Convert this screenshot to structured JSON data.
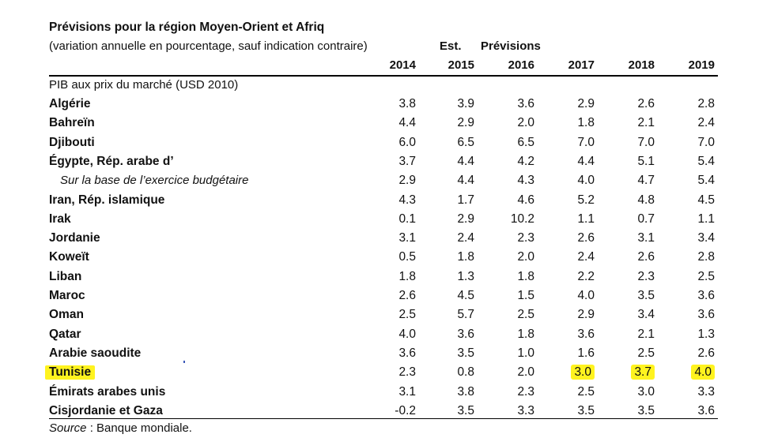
{
  "header": {
    "title": "Prévisions pour la région Moyen-Orient et Afriq",
    "subtitle": "(variation annuelle en pourcentage, sauf indication contraire)",
    "est_label": "Est.",
    "forecast_label": "Prévisions",
    "years": [
      "2014",
      "2015",
      "2016",
      "2017",
      "2018",
      "2019"
    ]
  },
  "table": {
    "section_label": "PIB aux prix du marché (USD 2010)",
    "rows": [
      {
        "label": "Algérie",
        "sub": false,
        "values": [
          "3.8",
          "3.9",
          "3.6",
          "2.9",
          "2.6",
          "2.8"
        ]
      },
      {
        "label": "Bahreïn",
        "sub": false,
        "values": [
          "4.4",
          "2.9",
          "2.0",
          "1.8",
          "2.1",
          "2.4"
        ]
      },
      {
        "label": "Djibouti",
        "sub": false,
        "values": [
          "6.0",
          "6.5",
          "6.5",
          "7.0",
          "7.0",
          "7.0"
        ]
      },
      {
        "label": "Égypte, Rép. arabe d’",
        "sub": false,
        "values": [
          "3.7",
          "4.4",
          "4.2",
          "4.4",
          "5.1",
          "5.4"
        ]
      },
      {
        "label": "Sur la base de l’exercice budgétaire",
        "sub": true,
        "values": [
          "2.9",
          "4.4",
          "4.3",
          "4.0",
          "4.7",
          "5.4"
        ]
      },
      {
        "label": "Iran, Rép. islamique",
        "sub": false,
        "values": [
          "4.3",
          "1.7",
          "4.6",
          "5.2",
          "4.8",
          "4.5"
        ]
      },
      {
        "label": "Irak",
        "sub": false,
        "values": [
          "0.1",
          "2.9",
          "10.2",
          "1.1",
          "0.7",
          "1.1"
        ]
      },
      {
        "label": "Jordanie",
        "sub": false,
        "values": [
          "3.1",
          "2.4",
          "2.3",
          "2.6",
          "3.1",
          "3.4"
        ]
      },
      {
        "label": "Koweït",
        "sub": false,
        "values": [
          "0.5",
          "1.8",
          "2.0",
          "2.4",
          "2.6",
          "2.8"
        ]
      },
      {
        "label": "Liban",
        "sub": false,
        "values": [
          "1.8",
          "1.3",
          "1.8",
          "2.2",
          "2.3",
          "2.5"
        ]
      },
      {
        "label": "Maroc",
        "sub": false,
        "values": [
          "2.6",
          "4.5",
          "1.5",
          "4.0",
          "3.5",
          "3.6"
        ]
      },
      {
        "label": "Oman",
        "sub": false,
        "values": [
          "2.5",
          "5.7",
          "2.5",
          "2.9",
          "3.4",
          "3.6"
        ]
      },
      {
        "label": "Qatar",
        "sub": false,
        "values": [
          "4.0",
          "3.6",
          "1.8",
          "3.6",
          "2.1",
          "1.3"
        ]
      },
      {
        "label": "Arabie saoudite",
        "sub": false,
        "values": [
          "3.6",
          "3.5",
          "1.0",
          "1.6",
          "2.5",
          "2.6"
        ]
      },
      {
        "label": "Tunisie",
        "sub": false,
        "highlight_label": true,
        "highlight_values": [
          3,
          4,
          5
        ],
        "values": [
          "2.3",
          "0.8",
          "2.0",
          "3.0",
          "3.7",
          "4.0"
        ]
      },
      {
        "label": "Émirats arabes unis",
        "sub": false,
        "values": [
          "3.1",
          "3.8",
          "2.3",
          "2.5",
          "3.0",
          "3.3"
        ]
      },
      {
        "label": "Cisjordanie et Gaza",
        "sub": false,
        "values": [
          "-0.2",
          "3.5",
          "3.3",
          "3.5",
          "3.5",
          "3.6"
        ]
      }
    ]
  },
  "footer": {
    "source_label": "Source",
    "source_text": " : Banque mondiale."
  },
  "colors": {
    "highlight": "#fff31f"
  }
}
